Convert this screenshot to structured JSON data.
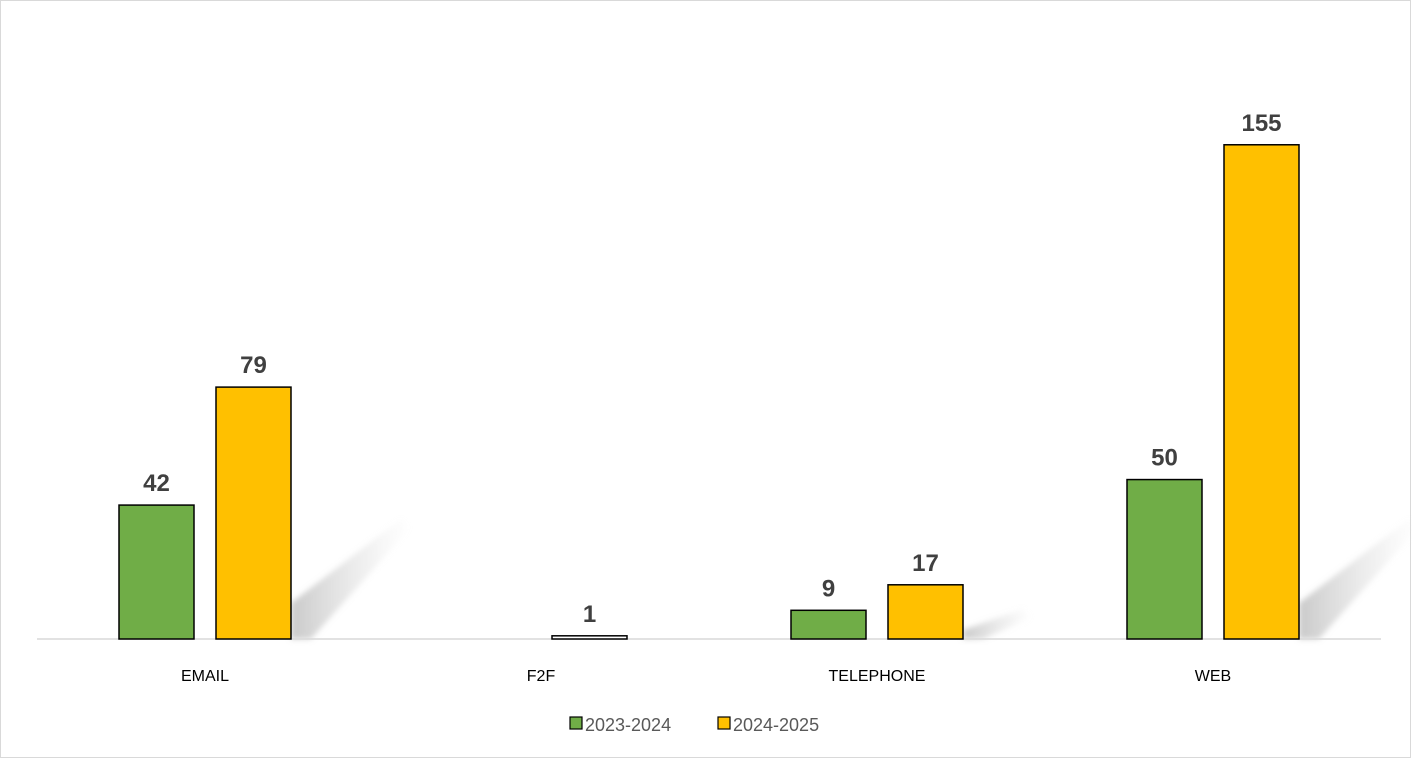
{
  "chart_data": {
    "type": "bar",
    "title": "",
    "xlabel": "",
    "ylabel": "",
    "categories": [
      "EMAIL",
      "F2F",
      "TELEPHONE",
      "WEB"
    ],
    "series": [
      {
        "name": "2023-2024",
        "color": "#70ad47",
        "values": [
          42,
          null,
          9,
          50
        ],
        "labels": [
          "42",
          "",
          "9",
          "50"
        ]
      },
      {
        "name": "2024-2025",
        "color": "#ffc000",
        "values": [
          79,
          1,
          17,
          155
        ],
        "labels": [
          "79",
          "1",
          "17",
          "155"
        ]
      }
    ],
    "ylim": [
      0,
      175
    ],
    "grid": false,
    "axis_visible": false,
    "legend_position": "bottom",
    "data_labels": true
  }
}
